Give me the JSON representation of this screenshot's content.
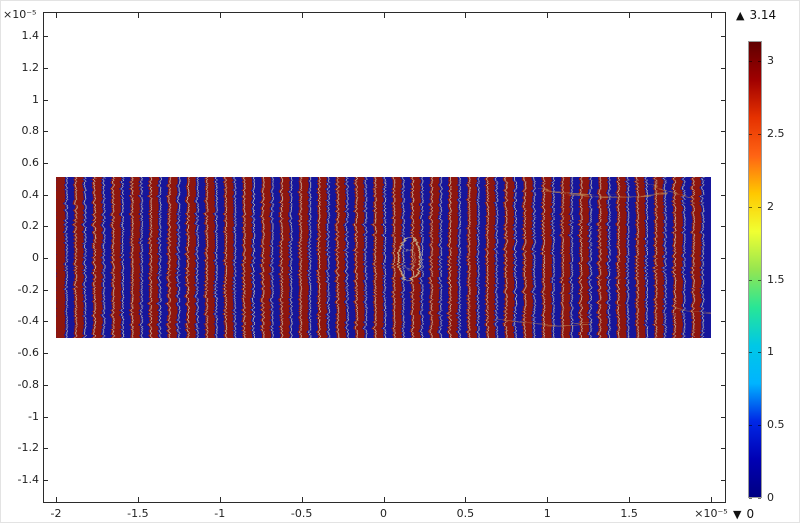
{
  "figure": {
    "background": "#ffffff",
    "y_axis": {
      "scale_label": "×10⁻⁵",
      "ticks": [
        {
          "v": 1.4,
          "label": "1.4"
        },
        {
          "v": 1.2,
          "label": "1.2"
        },
        {
          "v": 1.0,
          "label": "1"
        },
        {
          "v": 0.8,
          "label": "0.8"
        },
        {
          "v": 0.6,
          "label": "0.6"
        },
        {
          "v": 0.4,
          "label": "0.4"
        },
        {
          "v": 0.2,
          "label": "0.2"
        },
        {
          "v": 0.0,
          "label": "0"
        },
        {
          "v": -0.2,
          "label": "-0.2"
        },
        {
          "v": -0.4,
          "label": "-0.4"
        },
        {
          "v": -0.6,
          "label": "-0.6"
        },
        {
          "v": -0.8,
          "label": "-0.8"
        },
        {
          "v": -1.0,
          "label": "-1"
        },
        {
          "v": -1.2,
          "label": "-1.2"
        },
        {
          "v": -1.4,
          "label": "-1.4"
        }
      ]
    },
    "x_axis": {
      "scale_label": "×10⁻⁵",
      "ticks": [
        {
          "v": -2.0,
          "label": "-2"
        },
        {
          "v": -1.5,
          "label": "-1.5"
        },
        {
          "v": -1.0,
          "label": "-1"
        },
        {
          "v": -0.5,
          "label": "-0.5"
        },
        {
          "v": 0.0,
          "label": "0"
        },
        {
          "v": 0.5,
          "label": "0.5"
        },
        {
          "v": 1.0,
          "label": "1"
        },
        {
          "v": 1.5,
          "label": "1.5"
        },
        {
          "v": 2.0,
          "label": "×10⁻⁵"
        }
      ]
    },
    "colorbar": {
      "max_marker": "▲",
      "max_label": "3.14",
      "min_marker": "▼",
      "min_label": "0",
      "min": 0,
      "max": 3.14,
      "ticks": [
        {
          "v": 3.0,
          "label": "3"
        },
        {
          "v": 2.5,
          "label": "2.5"
        },
        {
          "v": 2.0,
          "label": "2"
        },
        {
          "v": 1.5,
          "label": "1.5"
        },
        {
          "v": 1.0,
          "label": "1"
        },
        {
          "v": 0.5,
          "label": "0.5"
        },
        {
          "v": 0.0,
          "label": "0"
        }
      ],
      "gradient_top_to_bottom": [
        "#600000",
        "#a00000",
        "#e63200",
        "#ff6414",
        "#ffc800",
        "#f0ff32",
        "#96e650",
        "#28e696",
        "#00c8e6",
        "#00b4ff",
        "#0028e6",
        "#0000b4",
        "#000082"
      ]
    }
  },
  "chart_data": {
    "type": "heatmap",
    "title": "",
    "xlabel": "",
    "ylabel": "",
    "x_scale_factor": "×10⁻⁵",
    "y_scale_factor": "×10⁻⁵",
    "x_range": [
      -2.08,
      2.09
    ],
    "y_range": [
      -1.55,
      1.55
    ],
    "colorbar_range": [
      0,
      3.14
    ],
    "colormap": "rainbow",
    "surface": {
      "x_min": -2.0,
      "x_max": 2.0,
      "y_min": -0.5,
      "y_max": 0.5,
      "description": "Rectangular domain phase-field plot: ~35 pairs of alternating vertical fringes at values 0 (dark blue) and 3.14 (dark red) with jagged mesh boundaries and a small circular scatterer defect just right of center",
      "fringe_pairs": 35,
      "stripe_count": 70,
      "value_min": 0,
      "value_max": 3.14,
      "high_color": "#8e1410",
      "low_color": "#14149b",
      "boundary_color": "#cdcbb2",
      "defect_color": "#c8b88c",
      "defect_center_data": {
        "x": 0.15,
        "y": 0.0
      }
    }
  }
}
